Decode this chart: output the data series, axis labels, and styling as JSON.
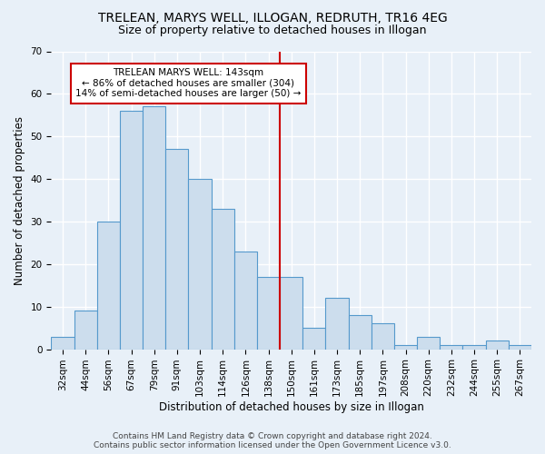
{
  "title1": "TRELEAN, MARYS WELL, ILLOGAN, REDRUTH, TR16 4EG",
  "title2": "Size of property relative to detached houses in Illogan",
  "xlabel": "Distribution of detached houses by size in Illogan",
  "ylabel": "Number of detached properties",
  "footer1": "Contains HM Land Registry data © Crown copyright and database right 2024.",
  "footer2": "Contains public sector information licensed under the Open Government Licence v3.0.",
  "categories": [
    "32sqm",
    "44sqm",
    "56sqm",
    "67sqm",
    "79sqm",
    "91sqm",
    "103sqm",
    "114sqm",
    "126sqm",
    "138sqm",
    "150sqm",
    "161sqm",
    "173sqm",
    "185sqm",
    "197sqm",
    "208sqm",
    "220sqm",
    "232sqm",
    "244sqm",
    "255sqm",
    "267sqm"
  ],
  "values": [
    3,
    9,
    30,
    56,
    57,
    47,
    40,
    33,
    23,
    17,
    17,
    5,
    12,
    8,
    6,
    1,
    3,
    1,
    1,
    2,
    1
  ],
  "bar_color": "#ccdded",
  "bar_edge_color": "#5599cc",
  "vline_x": 9.5,
  "vline_color": "#cc0000",
  "annotation_text": "TRELEAN MARYS WELL: 143sqm\n← 86% of detached houses are smaller (304)\n14% of semi-detached houses are larger (50) →",
  "annotation_box_color": "#cc0000",
  "annotation_fill": "#ffffff",
  "ylim": [
    0,
    70
  ],
  "yticks": [
    0,
    10,
    20,
    30,
    40,
    50,
    60,
    70
  ],
  "bg_color": "#e8f0f8",
  "plot_bg_color": "#e8f0f8",
  "grid_color": "#ffffff",
  "title_fontsize": 10,
  "subtitle_fontsize": 9,
  "axis_label_fontsize": 8.5,
  "tick_fontsize": 7.5,
  "footer_fontsize": 6.5
}
